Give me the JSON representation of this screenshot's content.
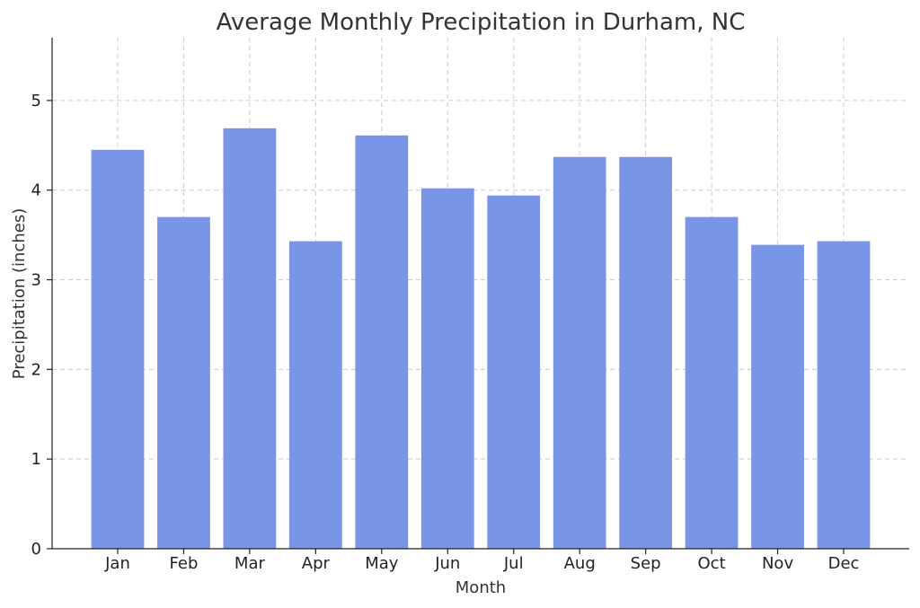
{
  "chart_data": {
    "type": "bar",
    "title": "Average Monthly Precipitation in Durham, NC",
    "xlabel": "Month",
    "ylabel": "Precipitation (inches)",
    "categories": [
      "Jan",
      "Feb",
      "Mar",
      "Apr",
      "May",
      "Jun",
      "Jul",
      "Aug",
      "Sep",
      "Oct",
      "Nov",
      "Dec"
    ],
    "values": [
      4.45,
      3.7,
      4.69,
      3.43,
      4.61,
      4.02,
      3.94,
      4.37,
      4.37,
      3.7,
      3.39,
      3.43
    ],
    "ylim": [
      0,
      5.7
    ],
    "yticks": [
      "0",
      "1",
      "2",
      "3",
      "4",
      "5"
    ],
    "grid": true,
    "bar_color": "#7895e8"
  }
}
